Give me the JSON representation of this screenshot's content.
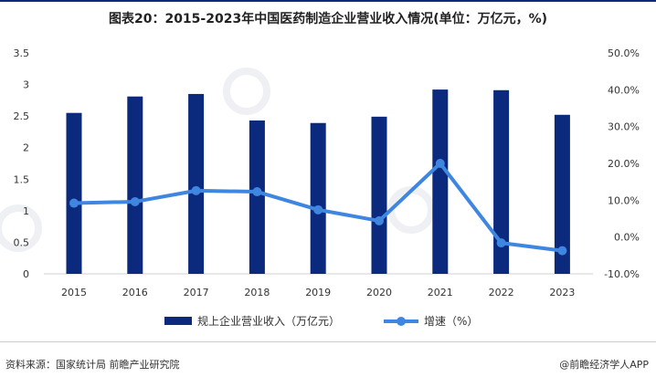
{
  "title": "图表20：2015-2023年中国医药制造企业营业收入情况(单位：万亿元，%)",
  "source": "资料来源：国家统计局 前瞻产业研究院",
  "brand": "@前瞻经济学人APP",
  "watermark": "前瞻产业研究院",
  "colors": {
    "bar": "#0b2a7e",
    "line": "#3f86e0"
  },
  "chart_data": {
    "type": "bar+line",
    "categories": [
      "2015",
      "2016",
      "2017",
      "2018",
      "2019",
      "2020",
      "2021",
      "2022",
      "2023"
    ],
    "series": [
      {
        "name": "规上企业营业收入（万亿元）",
        "type": "bar",
        "axis": "left",
        "values": [
          2.55,
          2.81,
          2.85,
          2.43,
          2.39,
          2.49,
          2.92,
          2.91,
          2.52
        ]
      },
      {
        "name": "增速（%）",
        "type": "line",
        "axis": "right",
        "values": [
          9.2,
          9.6,
          12.6,
          12.3,
          7.4,
          4.4,
          20.0,
          -1.6,
          -3.7
        ]
      }
    ],
    "left_axis": {
      "ylim": [
        0,
        3.5
      ],
      "ticks": [
        "0",
        "0.5",
        "1",
        "1.5",
        "2",
        "2.5",
        "3",
        "3.5"
      ]
    },
    "right_axis": {
      "ylim": [
        -10,
        50
      ],
      "ticks": [
        "-10.0%",
        "0.0%",
        "10.0%",
        "20.0%",
        "30.0%",
        "40.0%",
        "50.0%"
      ]
    },
    "grid": false,
    "legend": "bottom"
  }
}
